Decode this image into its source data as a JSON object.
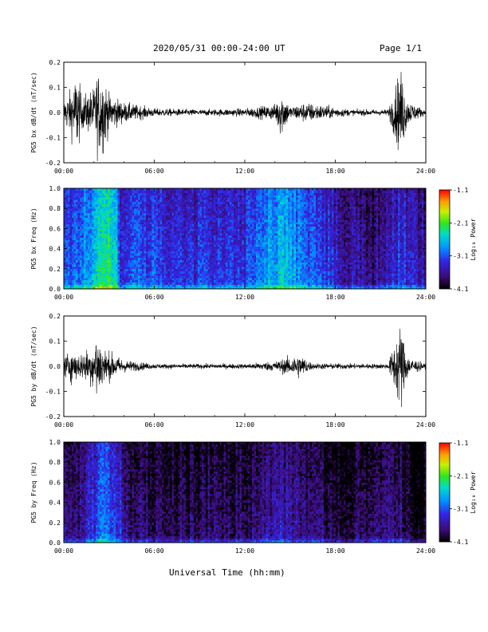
{
  "header": {
    "title": "2020/05/31  00:00-24:00 UT",
    "page": "Page 1/1"
  },
  "x_axis_label": "Universal Time (hh:mm)",
  "x_ticks": [
    "00:00",
    "06:00",
    "12:00",
    "18:00",
    "24:00"
  ],
  "colorbar": {
    "label": "Log₁₀ Power",
    "ticks": [
      "-1.1",
      "-2.1",
      "-3.1",
      "-4.1"
    ]
  },
  "chart_data": [
    {
      "type": "line",
      "ylabel": "PG5 bx dB/dt (nT/sec)",
      "xlim": [
        0,
        24
      ],
      "ylim": [
        -0.2,
        0.2
      ],
      "yticks": [
        "0.2",
        "0.1",
        "0.0",
        "-0.1",
        "-0.2"
      ],
      "envelope": [
        {
          "t": 0.0,
          "amp": 0.06
        },
        {
          "t": 0.5,
          "amp": 0.12
        },
        {
          "t": 0.9,
          "amp": 0.2
        },
        {
          "t": 1.2,
          "amp": 0.08
        },
        {
          "t": 2.0,
          "amp": 0.12
        },
        {
          "t": 2.2,
          "amp": 0.2
        },
        {
          "t": 2.6,
          "amp": 0.2
        },
        {
          "t": 3.0,
          "amp": 0.09
        },
        {
          "t": 4.0,
          "amp": 0.05
        },
        {
          "t": 6.0,
          "amp": 0.02
        },
        {
          "t": 9.0,
          "amp": 0.015
        },
        {
          "t": 12.0,
          "amp": 0.02
        },
        {
          "t": 14.0,
          "amp": 0.04
        },
        {
          "t": 14.4,
          "amp": 0.12
        },
        {
          "t": 15.0,
          "amp": 0.03
        },
        {
          "t": 16.0,
          "amp": 0.05
        },
        {
          "t": 19.0,
          "amp": 0.015
        },
        {
          "t": 21.5,
          "amp": 0.015
        },
        {
          "t": 22.25,
          "amp": 0.2
        },
        {
          "t": 22.4,
          "amp": 0.2
        },
        {
          "t": 22.8,
          "amp": 0.06
        },
        {
          "t": 24.0,
          "amp": 0.01
        }
      ]
    },
    {
      "type": "heatmap",
      "ylabel": "PG5 bx Freq (Hz)",
      "xlim": [
        0,
        24
      ],
      "ylim": [
        0,
        1
      ],
      "yticks": [
        "1.0",
        "0.8",
        "0.6",
        "0.4",
        "0.2",
        "0.0"
      ],
      "zlim": [
        -4.1,
        -1.1
      ],
      "activity": [
        {
          "t": 0.0,
          "v": 0.32
        },
        {
          "t": 1.0,
          "v": 0.38
        },
        {
          "t": 2.2,
          "v": 0.55
        },
        {
          "t": 2.5,
          "v": 0.62
        },
        {
          "t": 3.5,
          "v": 0.58
        },
        {
          "t": 3.8,
          "v": 0.3
        },
        {
          "t": 5.0,
          "v": 0.34
        },
        {
          "t": 8.0,
          "v": 0.3
        },
        {
          "t": 10.0,
          "v": 0.28
        },
        {
          "t": 12.0,
          "v": 0.32
        },
        {
          "t": 13.0,
          "v": 0.4
        },
        {
          "t": 14.5,
          "v": 0.52
        },
        {
          "t": 16.0,
          "v": 0.38
        },
        {
          "t": 17.0,
          "v": 0.34
        },
        {
          "t": 18.5,
          "v": 0.22
        },
        {
          "t": 20.5,
          "v": 0.16
        },
        {
          "t": 22.3,
          "v": 0.3
        },
        {
          "t": 24.0,
          "v": 0.2
        }
      ]
    },
    {
      "type": "line",
      "ylabel": "PG5 by dB/dt (nT/sec)",
      "xlim": [
        0,
        24
      ],
      "ylim": [
        -0.2,
        0.2
      ],
      "yticks": [
        "0.2",
        "0.1",
        "0.0",
        "-0.1",
        "-0.2"
      ],
      "envelope": [
        {
          "t": 0.0,
          "amp": 0.05
        },
        {
          "t": 0.5,
          "amp": 0.08
        },
        {
          "t": 1.0,
          "amp": 0.06
        },
        {
          "t": 2.0,
          "amp": 0.1
        },
        {
          "t": 2.2,
          "amp": 0.2
        },
        {
          "t": 2.6,
          "amp": 0.09
        },
        {
          "t": 3.3,
          "amp": 0.06
        },
        {
          "t": 4.0,
          "amp": 0.03
        },
        {
          "t": 6.0,
          "amp": 0.012
        },
        {
          "t": 12.0,
          "amp": 0.012
        },
        {
          "t": 14.0,
          "amp": 0.025
        },
        {
          "t": 15.6,
          "amp": 0.06
        },
        {
          "t": 16.5,
          "amp": 0.015
        },
        {
          "t": 21.5,
          "amp": 0.012
        },
        {
          "t": 22.25,
          "amp": 0.2
        },
        {
          "t": 22.4,
          "amp": 0.2
        },
        {
          "t": 22.8,
          "amp": 0.05
        },
        {
          "t": 24.0,
          "amp": 0.01
        }
      ]
    },
    {
      "type": "heatmap",
      "ylabel": "PG5 by Freq (Hz)",
      "xlim": [
        0,
        24
      ],
      "ylim": [
        0,
        1
      ],
      "yticks": [
        "1.0",
        "0.8",
        "0.6",
        "0.4",
        "0.2",
        "0.0"
      ],
      "zlim": [
        -4.1,
        -1.1
      ],
      "activity": [
        {
          "t": 0.0,
          "v": 0.2
        },
        {
          "t": 1.0,
          "v": 0.16
        },
        {
          "t": 2.3,
          "v": 0.32
        },
        {
          "t": 2.6,
          "v": 0.38
        },
        {
          "t": 3.5,
          "v": 0.3
        },
        {
          "t": 4.5,
          "v": 0.14
        },
        {
          "t": 8.0,
          "v": 0.1
        },
        {
          "t": 12.0,
          "v": 0.12
        },
        {
          "t": 14.5,
          "v": 0.22
        },
        {
          "t": 16.0,
          "v": 0.15
        },
        {
          "t": 19.0,
          "v": 0.08
        },
        {
          "t": 22.3,
          "v": 0.16
        },
        {
          "t": 23.0,
          "v": 0.06
        },
        {
          "t": 24.0,
          "v": 0.04
        }
      ]
    }
  ]
}
